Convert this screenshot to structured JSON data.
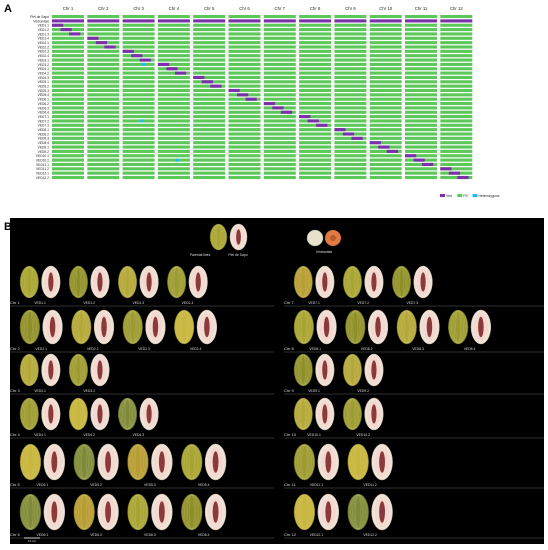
{
  "panel_a": {
    "label": "A",
    "chromosomes": [
      "Chr 1",
      "Chr 2",
      "Chr 3",
      "Chr 4",
      "Chr 5",
      "Chr 6",
      "Chr 7",
      "Chr 8",
      "Chr 9",
      "Chr 10",
      "Chr 11",
      "Chr 12"
    ],
    "rows": [
      "Piel de Sapo",
      "Védrantais",
      "VED1.1",
      "VED1.2",
      "VED1.3",
      "VED1.4",
      "VED2.1",
      "VED2.2",
      "VED2.3",
      "VED2.4",
      "VED3.1",
      "VED3.2",
      "VED4.1",
      "VED4.2",
      "VED4.3",
      "VED5.1",
      "VED5.2",
      "VED5.3",
      "VED5.4",
      "VED6.1",
      "VED6.2",
      "VED6.3",
      "VED6.4",
      "VED7.1",
      "VED7.2",
      "VED7.3",
      "VED8.1",
      "VED8.2",
      "VED8.3",
      "VED8.4",
      "VED9.1",
      "VED9.2",
      "VED10.1",
      "VED10.2",
      "VED11.1",
      "VED11.2",
      "VED12.1",
      "VED12.2"
    ],
    "legend": [
      {
        "label": "Ved",
        "color": "#7b2fa8"
      },
      {
        "label": "PS",
        "color": "#5cc85a"
      },
      {
        "label": "Heterozygous",
        "color": "#2ab8e8"
      }
    ]
  },
  "panel_b": {
    "label": "B",
    "parental_label": "Parental lines",
    "parents": [
      "Piel de Sapo",
      "Védrantais"
    ],
    "groups": [
      {
        "chr": "Chr 1",
        "lines": [
          "VED1.1",
          "VED1.2",
          "VED1.3",
          "VED1.4"
        ]
      },
      {
        "chr": "Chr 2",
        "lines": [
          "VED2.1",
          "VED2.2",
          "VED2.3",
          "VED2.4"
        ]
      },
      {
        "chr": "Chr 3",
        "lines": [
          "VED3.1",
          "VED3.2"
        ]
      },
      {
        "chr": "Chr 4",
        "lines": [
          "VED4.1",
          "VED4.2",
          "VED4.3"
        ]
      },
      {
        "chr": "Chr 5",
        "lines": [
          "VED5.1",
          "VED5.2",
          "VED5.3",
          "VED5.4"
        ]
      },
      {
        "chr": "Chr 6",
        "lines": [
          "VED6.1",
          "VED6.2",
          "VED6.3",
          "VED6.4"
        ]
      },
      {
        "chr": "Chr 7",
        "lines": [
          "VED7.1",
          "VED7.2",
          "VED7.3"
        ]
      },
      {
        "chr": "Chr 8",
        "lines": [
          "VED8.1",
          "VED8.2",
          "VED8.3",
          "VED8.4"
        ]
      },
      {
        "chr": "Chr 9",
        "lines": [
          "VED9.1",
          "VED9.2"
        ]
      },
      {
        "chr": "Chr 10",
        "lines": [
          "VED10.1",
          "VED10.2"
        ]
      },
      {
        "chr": "Chr 11",
        "lines": [
          "VED11.1",
          "VED11.2"
        ]
      },
      {
        "chr": "Chr 12",
        "lines": [
          "VED12.1",
          "VED12.2"
        ]
      }
    ],
    "scale_bar": "10 cm"
  },
  "colors": {
    "ved": "#7b2fa8",
    "ps": "#5cc85a",
    "het": "#2ab8e8",
    "header": "#7b2fa8"
  }
}
